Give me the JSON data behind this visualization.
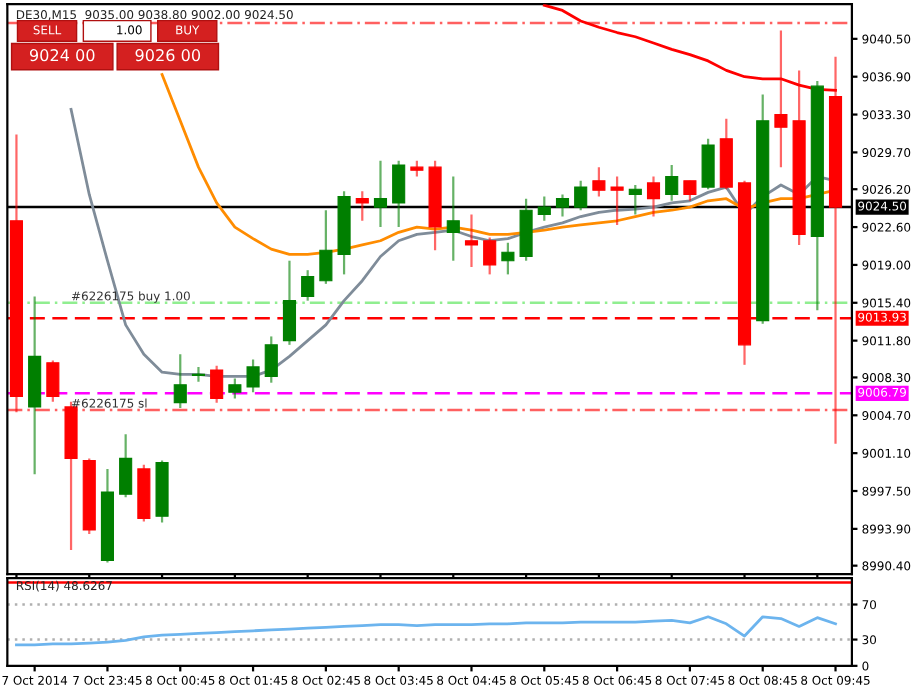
{
  "chart_data": [
    {
      "type": "candlestick",
      "title": "DE30,M15  9035.00 9038.80 9002.00 9024.50",
      "annotations": [
        "SELL",
        "1.00",
        "BUY",
        "9024 00",
        "9026 00"
      ],
      "ohlc": [
        [
          9023.2,
          9031.4,
          9005.0,
          9006.5
        ],
        [
          9005.5,
          9016.0,
          8999.1,
          9010.3
        ],
        [
          9009.7,
          9009.9,
          9006.0,
          9006.5
        ],
        [
          9005.5,
          9006.0,
          8991.9,
          9000.6
        ],
        [
          9000.4,
          9000.6,
          8993.4,
          8993.8
        ],
        [
          8990.9,
          8999.6,
          8990.7,
          8997.4
        ],
        [
          8997.2,
          9002.9,
          8996.9,
          9000.6
        ],
        [
          8999.6,
          9000.0,
          8994.6,
          8994.9
        ],
        [
          8995.1,
          9000.4,
          8994.5,
          9000.2
        ],
        [
          9005.9,
          9010.5,
          9005.4,
          9007.6
        ],
        [
          9008.5,
          9009.3,
          9007.9,
          9008.6
        ],
        [
          9009.0,
          9009.4,
          9005.9,
          9006.3
        ],
        [
          9006.9,
          9008.2,
          9006.3,
          9007.6
        ],
        [
          9007.4,
          9010.0,
          9006.9,
          9009.3
        ],
        [
          9008.4,
          9012.2,
          9007.8,
          9011.4
        ],
        [
          9011.8,
          9019.4,
          9011.4,
          9015.6
        ],
        [
          9016.0,
          9018.5,
          9015.6,
          9017.9
        ],
        [
          9017.5,
          9024.2,
          9017.2,
          9020.4
        ],
        [
          9020.0,
          9026.0,
          9018.1,
          9025.5
        ],
        [
          9025.3,
          9026.0,
          9023.2,
          9024.9
        ],
        [
          9024.5,
          9028.9,
          9022.6,
          9025.3
        ],
        [
          9024.9,
          9028.9,
          9022.6,
          9028.5
        ],
        [
          9028.3,
          9028.9,
          9027.4,
          9028.0
        ],
        [
          9028.3,
          9028.9,
          9020.4,
          9022.6
        ],
        [
          9022.1,
          9027.4,
          9019.4,
          9023.2
        ],
        [
          9021.3,
          9023.8,
          9018.8,
          9020.9
        ],
        [
          9021.3,
          9021.6,
          9018.1,
          9019.0
        ],
        [
          9019.4,
          9021.1,
          9018.1,
          9020.2
        ],
        [
          9019.8,
          9025.3,
          9019.4,
          9024.2
        ],
        [
          9023.8,
          9025.5,
          9023.2,
          9024.5
        ],
        [
          9024.5,
          9025.7,
          9023.6,
          9025.3
        ],
        [
          9024.5,
          9027.0,
          9024.2,
          9026.4
        ],
        [
          9027.0,
          9028.3,
          9025.5,
          9026.1
        ],
        [
          9026.4,
          9027.4,
          9022.8,
          9026.1
        ],
        [
          9025.7,
          9026.6,
          9023.8,
          9026.2
        ],
        [
          9026.8,
          9027.4,
          9023.6,
          9025.3
        ],
        [
          9025.7,
          9028.5,
          9025.1,
          9027.4
        ],
        [
          9027.0,
          9027.0,
          9025.1,
          9025.7
        ],
        [
          9026.4,
          9031.0,
          9026.2,
          9030.4
        ],
        [
          9031.0,
          9032.9,
          9026.2,
          9026.4
        ],
        [
          9026.8,
          9027.0,
          9009.5,
          9011.4
        ],
        [
          9013.7,
          9035.2,
          9013.4,
          9032.7
        ],
        [
          9033.3,
          9041.3,
          9028.3,
          9032.1
        ],
        [
          9032.7,
          9037.5,
          9020.9,
          9021.9
        ],
        [
          9021.7,
          9036.5,
          9014.7,
          9036.0
        ],
        [
          9035.0,
          9038.8,
          9002.0,
          9024.5
        ]
      ],
      "colors": [
        "#ff0000",
        "#007f00",
        "#ff0000",
        "#ff0000",
        "#ff0000",
        "#007f00",
        "#007f00",
        "#ff0000",
        "#007f00",
        "#007f00",
        "#007f00",
        "#ff0000",
        "#007f00",
        "#007f00",
        "#007f00",
        "#007f00",
        "#007f00",
        "#007f00",
        "#007f00",
        "#ff0000",
        "#007f00",
        "#007f00",
        "#ff0000",
        "#ff0000",
        "#007f00",
        "#ff0000",
        "#ff0000",
        "#007f00",
        "#007f00",
        "#007f00",
        "#007f00",
        "#007f00",
        "#ff0000",
        "#ff0000",
        "#007f00",
        "#ff0000",
        "#007f00",
        "#ff0000",
        "#007f00",
        "#ff0000",
        "#ff0000",
        "#007f00",
        "#ff0000",
        "#ff0000",
        "#007f00",
        "#ff0000"
      ],
      "series": [
        {
          "type": "line",
          "color": "#7f8c99",
          "values": [
            null,
            null,
            null,
            9033.8,
            9025.7,
            9019.4,
            9013.3,
            9010.5,
            9008.8,
            9008.6,
            9008.6,
            9008.4,
            9008.4,
            9008.4,
            9009.0,
            9010.3,
            9011.8,
            9013.3,
            9015.6,
            9017.5,
            9019.8,
            9021.3,
            9021.9,
            9022.1,
            9022.3,
            9021.7,
            9021.3,
            9021.5,
            9022.1,
            9022.6,
            9023.0,
            9023.6,
            9024.0,
            9024.2,
            9024.3,
            9024.5,
            9024.9,
            9025.1,
            9025.9,
            9026.4,
            9023.8,
            9025.5,
            9026.6,
            9025.7,
            9027.4,
            9027.0
          ]
        },
        {
          "type": "line",
          "color": "#ff8c00",
          "values": [
            null,
            null,
            null,
            null,
            null,
            null,
            null,
            null,
            9037.1,
            9032.7,
            9028.3,
            9024.9,
            9022.6,
            9021.5,
            9020.5,
            9020.0,
            9020.0,
            9020.2,
            9020.5,
            9020.9,
            9021.3,
            9022.1,
            9022.6,
            9022.4,
            9022.6,
            9022.3,
            9021.9,
            9021.9,
            9022.1,
            9022.3,
            9022.6,
            9022.8,
            9023.0,
            9023.2,
            9023.6,
            9024.0,
            9024.2,
            9024.5,
            9025.1,
            9025.3,
            9024.3,
            9024.9,
            9025.3,
            9025.3,
            9025.7,
            9026.1
          ]
        },
        {
          "type": "line",
          "color": "#ff0000",
          "values": [
            null,
            null,
            null,
            null,
            null,
            null,
            null,
            null,
            null,
            null,
            null,
            null,
            null,
            null,
            null,
            null,
            null,
            null,
            null,
            null,
            null,
            null,
            null,
            null,
            null,
            null,
            null,
            null,
            null,
            9043.7,
            9043.2,
            9042.2,
            9041.6,
            9041.1,
            9040.7,
            9040.1,
            9039.5,
            9039.0,
            9038.4,
            9037.5,
            9036.9,
            9036.7,
            9036.7,
            9036.1,
            9035.7,
            9035.6
          ]
        }
      ],
      "ylim": [
        8989.6,
        9043.8
      ],
      "yticks": [
        {
          "value": 8990.4,
          "label": "8990.40"
        },
        {
          "value": 8993.9,
          "label": "8993.90"
        },
        {
          "value": 8997.5,
          "label": "8997.50"
        },
        {
          "value": 9001.1,
          "label": "9001.10"
        },
        {
          "value": 9004.7,
          "label": "9004.70"
        },
        {
          "value": 9008.3,
          "label": "9008.30"
        },
        {
          "value": 9011.8,
          "label": "9011.80"
        },
        {
          "value": 9015.4,
          "label": "9015.40"
        },
        {
          "value": 9019.0,
          "label": "9019.00"
        },
        {
          "value": 9022.6,
          "label": "9022.60"
        },
        {
          "value": 9026.2,
          "label": "9026.20"
        },
        {
          "value": 9029.7,
          "label": "9029.70"
        },
        {
          "value": 9033.3,
          "label": "9033.30"
        },
        {
          "value": 9036.9,
          "label": "9036.90"
        },
        {
          "value": 9040.5,
          "label": "9040.50"
        }
      ],
      "ref_lines": [
        {
          "axis": "y",
          "value": 9042.0,
          "color": "#ff6060",
          "line_style": "dashdot"
        },
        {
          "axis": "y",
          "value": 9024.5,
          "label": "9024.50",
          "color": "#000000",
          "line_style": "solid"
        },
        {
          "axis": "y",
          "value": 9015.4,
          "label": "#6226175 buy 1.00",
          "color": "#90ee90",
          "line_style": "dashdot"
        },
        {
          "axis": "y",
          "value": 9013.93,
          "label": "9013.93",
          "color": "#ff0000",
          "line_style": "dashed"
        },
        {
          "axis": "y",
          "value": 9006.79,
          "label": "9006.79",
          "color": "#ff00ff",
          "line_style": "dashed"
        },
        {
          "axis": "y",
          "value": 9005.2,
          "label": "#6226175 sl",
          "color": "#ff6060",
          "line_style": "dashdot"
        }
      ],
      "tick_labels": "y",
      "grid": false
    },
    {
      "type": "line",
      "title": "RSI(14) 48.6267",
      "categories": [
        null,
        "7 Oct 2014",
        null,
        null,
        null,
        "7 Oct 23:45",
        null,
        null,
        null,
        "8 Oct 00:45",
        null,
        null,
        null,
        "8 Oct 01:45",
        null,
        null,
        null,
        "8 Oct 02:45",
        null,
        null,
        null,
        "8 Oct 03:45",
        null,
        null,
        null,
        "8 Oct 04:45",
        null,
        null,
        null,
        "8 Oct 05:45",
        null,
        null,
        null,
        "8 Oct 06:45",
        null,
        null,
        null,
        "8 Oct 07:45",
        null,
        null,
        null,
        "8 Oct 08:45",
        null,
        null,
        null,
        "8 Oct 09:45"
      ],
      "series": [
        {
          "color": "#6cb4ee",
          "values": [
            24,
            24,
            25,
            25,
            26,
            27,
            29,
            33,
            35,
            36,
            37,
            38,
            39,
            40,
            41,
            42,
            43,
            44,
            45,
            46,
            47,
            47,
            46,
            47,
            47,
            47,
            48,
            48,
            49,
            49,
            49,
            50,
            50,
            50,
            50,
            51,
            52,
            49,
            56,
            48,
            34,
            56,
            54,
            45,
            55,
            48
          ]
        }
      ],
      "ylim": [
        0,
        100
      ],
      "yticks": [
        0,
        30,
        70
      ],
      "ref_lines": [
        {
          "axis": "y",
          "value": 70,
          "color": "#b0b0b0",
          "line_style": "dotted"
        },
        {
          "axis": "y",
          "value": 30,
          "color": "#b0b0b0",
          "line_style": "dotted"
        },
        {
          "axis": "y",
          "value": 95,
          "color": "#ff0000",
          "line_style": "solid"
        }
      ],
      "grid": false
    }
  ]
}
